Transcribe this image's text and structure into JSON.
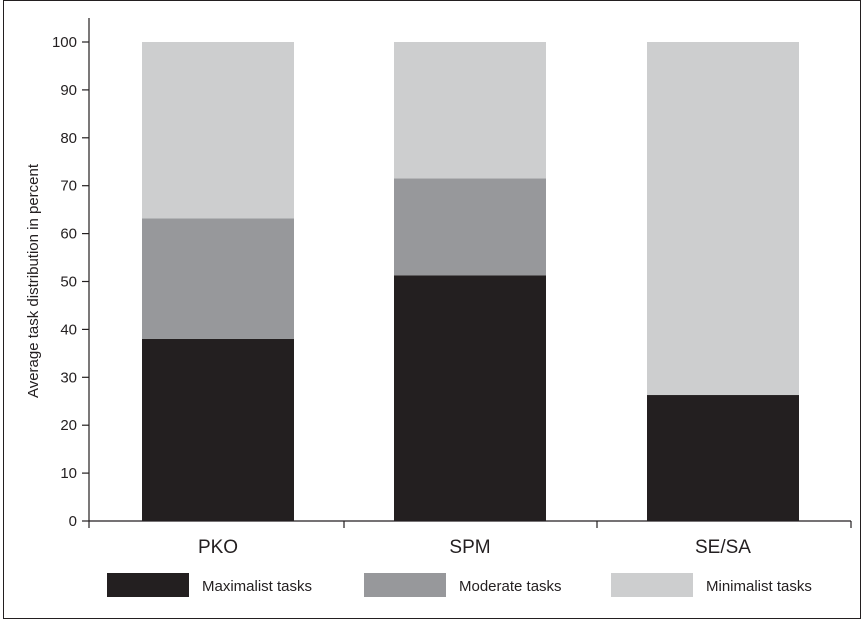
{
  "chart_data": {
    "type": "bar",
    "stacked": true,
    "categories": [
      "PKO",
      "SPM",
      "SE/SA"
    ],
    "series": [
      {
        "name": "Maximalist tasks",
        "values": [
          38,
          51.3,
          26.3
        ],
        "color": "#231f20"
      },
      {
        "name": "Moderate tasks",
        "values": [
          25.2,
          20.2,
          0
        ],
        "color": "#97989b"
      },
      {
        "name": "Minimalist tasks",
        "values": [
          36.8,
          28.5,
          73.7
        ],
        "color": "#cdcecf"
      }
    ],
    "ylabel": "Average task distribution in percent",
    "xlabel": "",
    "ylim": [
      0,
      100
    ],
    "yticks": [
      0,
      10,
      20,
      30,
      40,
      50,
      60,
      70,
      80,
      90,
      100
    ],
    "grid": false,
    "legend_position": "bottom"
  }
}
